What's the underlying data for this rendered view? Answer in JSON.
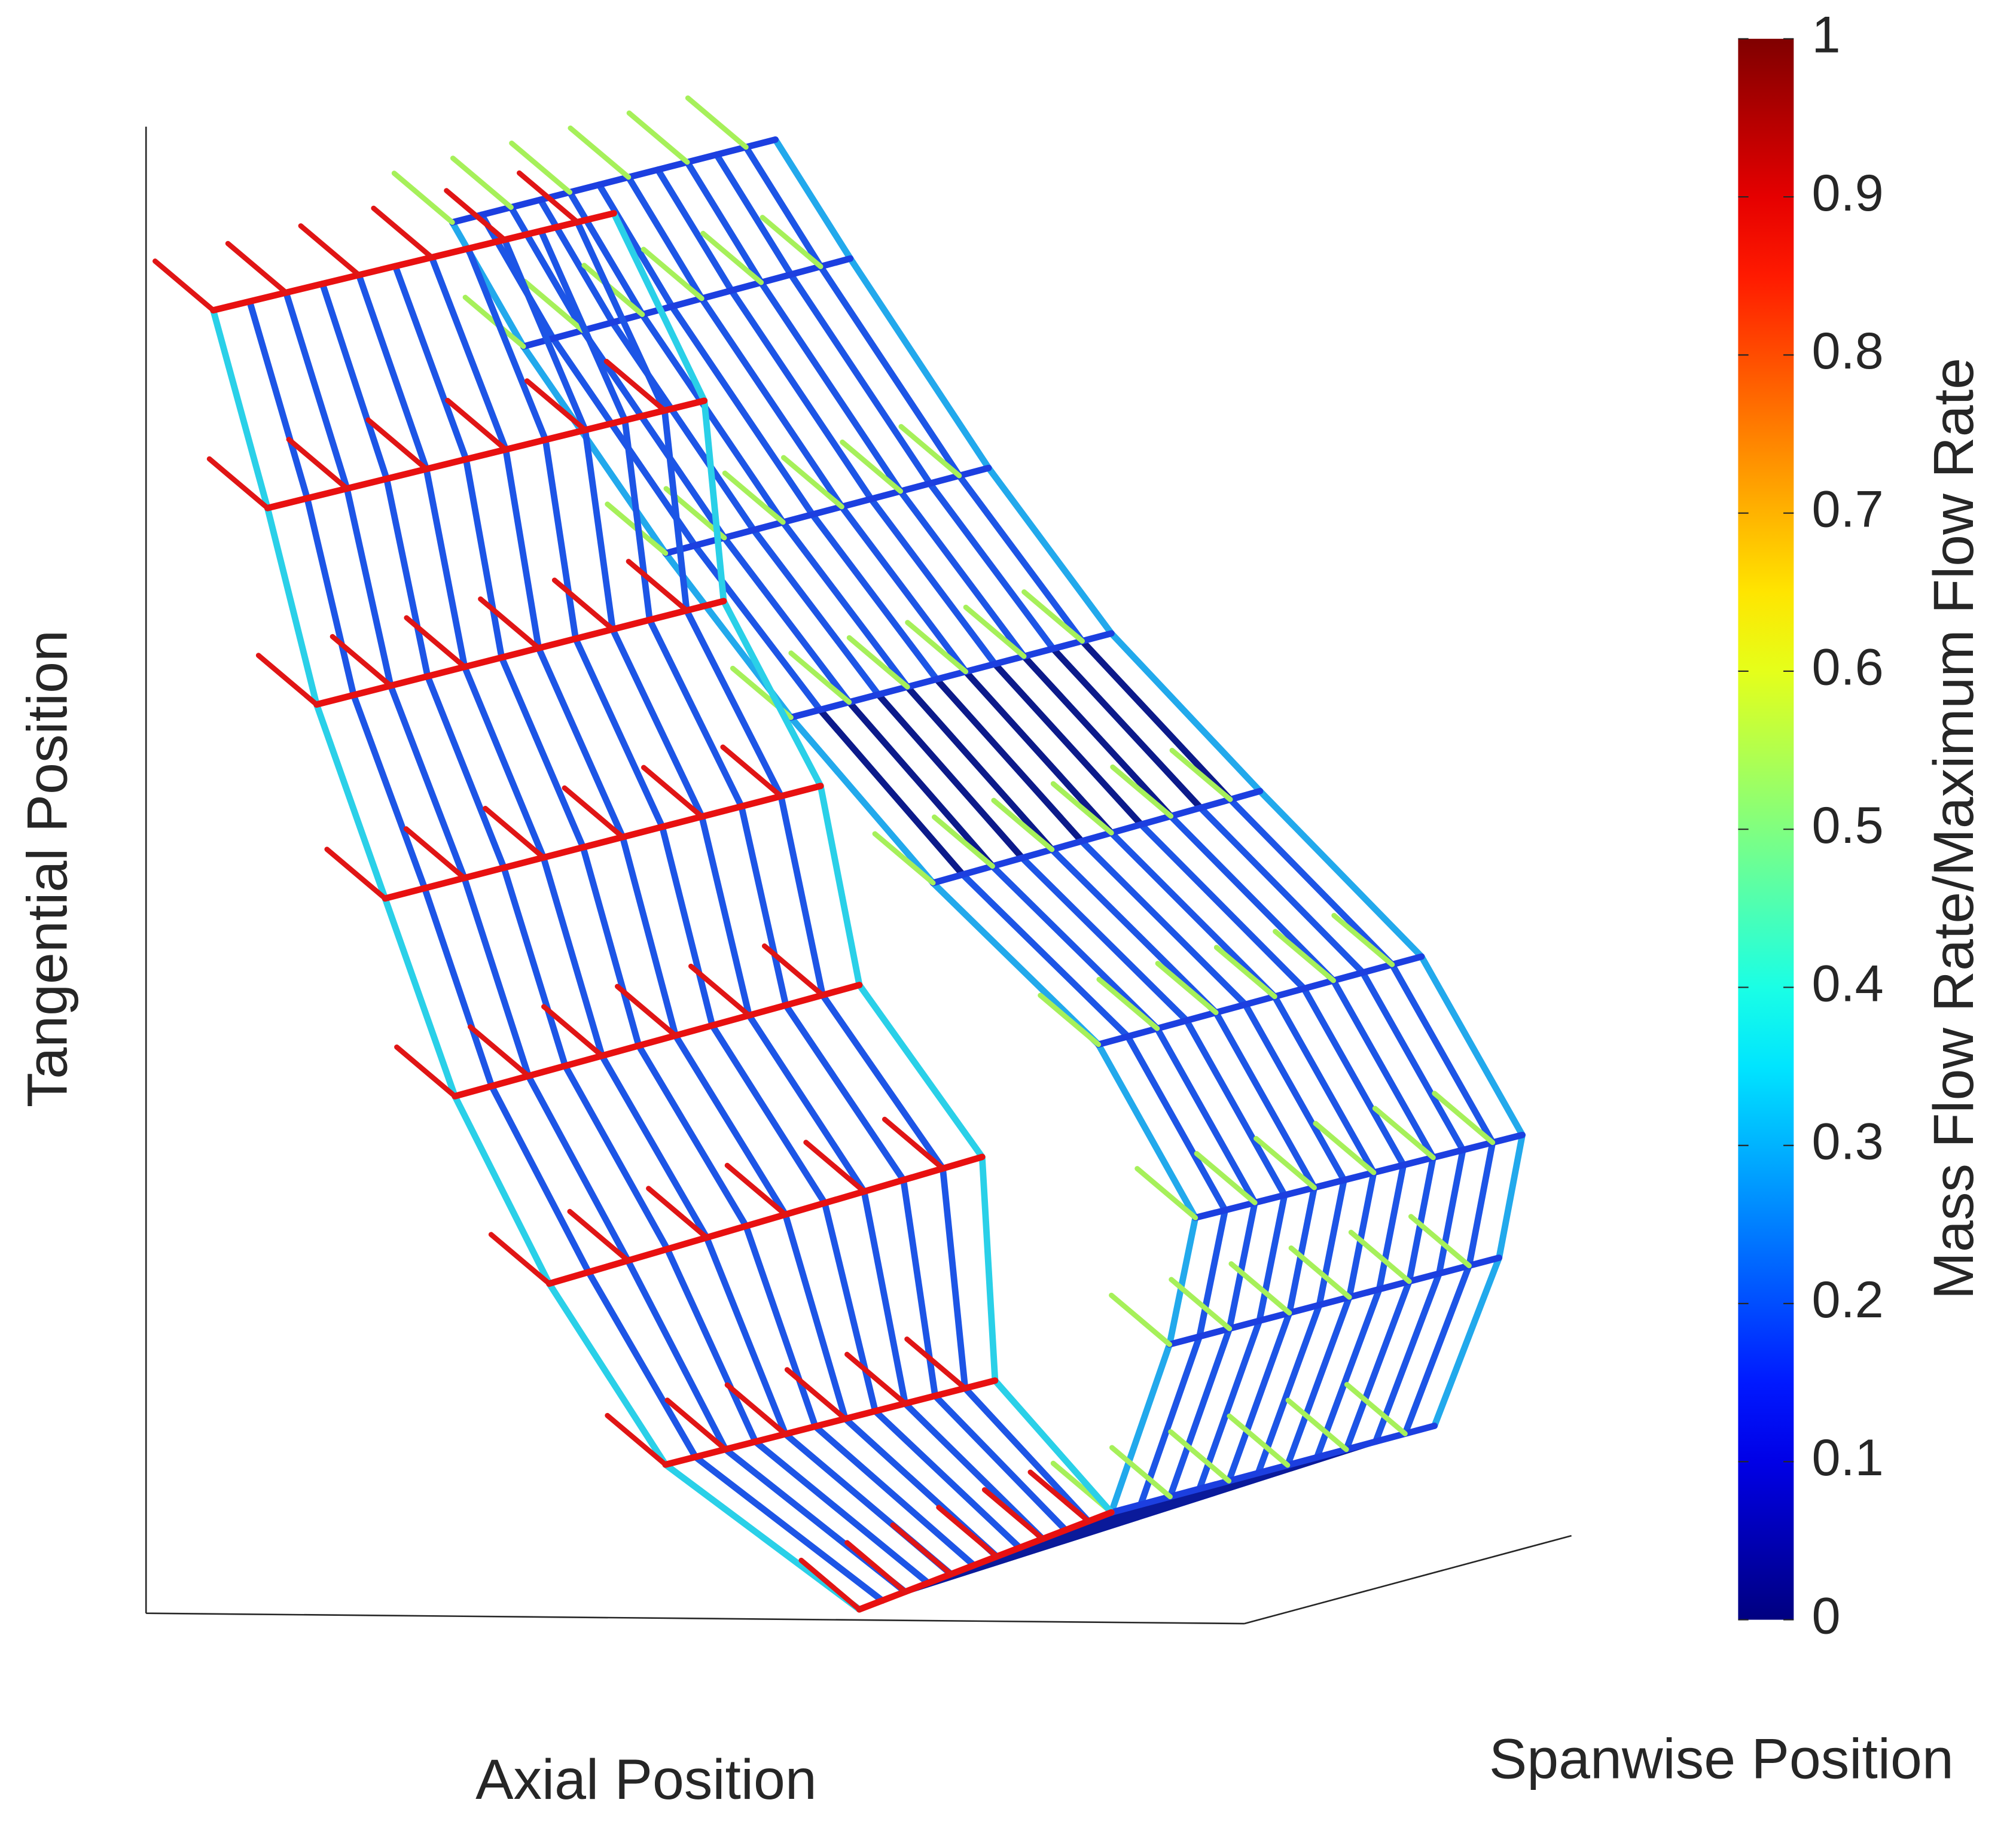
{
  "chart_data": {
    "type": "wireframe",
    "xlabel": "Axial Position",
    "ylabel": "Tangential Position",
    "zlabel": "Spanwise Position",
    "colorbar": {
      "label": "Mass Flow Rate/Maximum Flow Rate",
      "colormap": "jet",
      "lim": [
        0,
        1
      ],
      "ticks": [
        0,
        0.1,
        0.2,
        0.3,
        0.4,
        0.5,
        0.6,
        0.7,
        0.8,
        0.9,
        1
      ]
    }
  }
}
